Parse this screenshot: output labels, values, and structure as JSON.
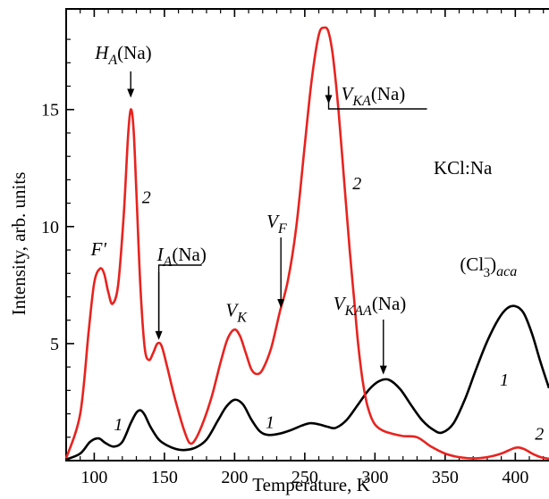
{
  "chart_data": {
    "type": "line",
    "title": "",
    "xlabel": "Temperature, K",
    "ylabel": "Intensity, arb. units",
    "xlim": [
      80,
      424
    ],
    "ylim": [
      0,
      19.3
    ],
    "x_ticks": [
      100,
      150,
      200,
      250,
      300,
      350,
      400
    ],
    "y_ticks": [
      5,
      10,
      15
    ],
    "grid": false,
    "legend": "none",
    "sample_label": "KCl:Na",
    "series": [
      {
        "name": "1",
        "color": "#000000",
        "x": [
          80,
          90,
          97,
          103,
          108,
          114,
          120,
          126,
          130,
          133,
          136,
          140,
          146,
          152,
          158,
          164,
          172,
          180,
          188,
          194,
          200,
          206,
          212,
          218,
          224,
          232,
          240,
          248,
          254,
          260,
          266,
          272,
          280,
          288,
          296,
          303,
          310,
          318,
          326,
          334,
          342,
          348,
          356,
          364,
          372,
          380,
          388,
          394,
          400,
          406,
          412,
          418,
          424
        ],
        "y": [
          0.05,
          0.3,
          0.8,
          0.95,
          0.75,
          0.6,
          0.8,
          1.6,
          2.05,
          2.15,
          1.95,
          1.45,
          0.9,
          0.65,
          0.5,
          0.45,
          0.55,
          0.9,
          1.7,
          2.3,
          2.6,
          2.4,
          1.75,
          1.25,
          1.1,
          1.15,
          1.3,
          1.5,
          1.6,
          1.55,
          1.45,
          1.4,
          1.75,
          2.4,
          3.05,
          3.4,
          3.45,
          3.05,
          2.35,
          1.7,
          1.3,
          1.2,
          1.6,
          2.6,
          3.9,
          5.1,
          6.05,
          6.5,
          6.6,
          6.3,
          5.4,
          4.2,
          3.1
        ]
      },
      {
        "name": "2",
        "color": "#e8231f",
        "x": [
          80,
          90,
          96,
          100,
          104,
          107,
          110,
          113,
          117,
          121,
          124,
          126,
          128,
          130,
          133,
          136,
          139,
          142,
          145,
          148,
          152,
          156,
          160,
          164,
          168,
          172,
          178,
          184,
          190,
          195,
          200,
          204,
          208,
          212,
          216,
          220,
          226,
          232,
          238,
          244,
          250,
          255,
          260,
          264,
          267,
          270,
          274,
          278,
          282,
          285,
          288,
          291,
          294,
          297,
          300,
          305,
          312,
          320,
          330,
          340,
          350,
          360,
          370,
          380,
          390,
          400,
          406,
          412,
          418,
          424
        ],
        "y": [
          0.1,
          2.0,
          5.5,
          7.6,
          8.2,
          8.0,
          7.2,
          6.7,
          7.5,
          10.5,
          13.8,
          15.0,
          14.2,
          11.5,
          7.3,
          4.8,
          4.3,
          4.6,
          5.0,
          4.9,
          4.0,
          3.0,
          2.1,
          1.3,
          0.75,
          0.9,
          1.7,
          2.8,
          4.2,
          5.2,
          5.6,
          5.3,
          4.6,
          3.9,
          3.7,
          3.9,
          4.8,
          6.3,
          7.7,
          10.0,
          13.5,
          16.3,
          18.2,
          18.5,
          18.3,
          17.3,
          15.0,
          12.0,
          9.0,
          7.0,
          5.0,
          3.5,
          2.5,
          1.9,
          1.55,
          1.3,
          1.15,
          1.05,
          1.0,
          0.6,
          0.3,
          0.15,
          0.1,
          0.15,
          0.3,
          0.55,
          0.5,
          0.3,
          0.15,
          0.08
        ]
      }
    ],
    "annotations": [
      {
        "text": "F'",
        "x": 104,
        "y": 8.4
      },
      {
        "text": "H",
        "sub": "A",
        "after": "(Na)",
        "x": 126,
        "y": 15.2,
        "arrow": true
      },
      {
        "text": "I",
        "sub": "A",
        "after": "(Na)",
        "x": 146,
        "y": 5.0,
        "arrow": true
      },
      {
        "text": "V",
        "sub": "K",
        "x": 200,
        "y": 5.7
      },
      {
        "text": "V",
        "sub": "F",
        "x": 233,
        "y": 6.6,
        "arrow": true
      },
      {
        "text": "V",
        "sub": "KA",
        "after": "(Na)",
        "x": 267,
        "y": 16.0,
        "arrow": true
      },
      {
        "text": "V",
        "sub": "KAA",
        "after": "(Na)",
        "x": 306,
        "y": 3.6,
        "arrow": true
      },
      {
        "text": "(Cl",
        "sub": "3",
        "sup": "−",
        "after": ")",
        "sub2": "aca",
        "x": 400,
        "y": 6.7
      }
    ],
    "curve_labels": [
      {
        "text": "1",
        "x": 114,
        "y": 1.3
      },
      {
        "text": "2",
        "x": 134,
        "y": 11.0
      },
      {
        "text": "1",
        "x": 222,
        "y": 1.4
      },
      {
        "text": "2",
        "x": 284,
        "y": 11.6
      },
      {
        "text": "1",
        "x": 389,
        "y": 3.2
      },
      {
        "text": "2",
        "x": 414,
        "y": 0.9
      }
    ]
  }
}
